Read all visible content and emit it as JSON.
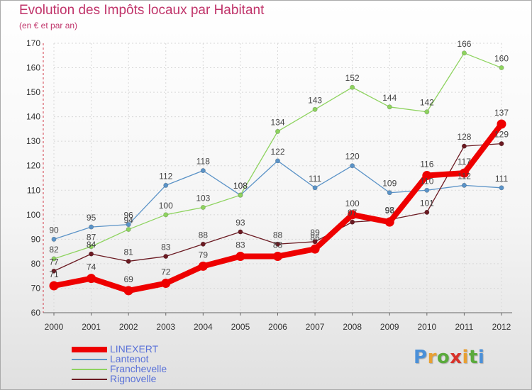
{
  "title": "Evolution des Impôts locaux par Habitant",
  "subtitle": "(en € et par an)",
  "logo": {
    "text": "Proxiti",
    "letter_colors": [
      "#4a90d9",
      "#e8a033",
      "#5aaa3c",
      "#d8322a",
      "#e8a033",
      "#5aaa3c",
      "#4a90d9"
    ]
  },
  "chart_data": {
    "type": "line",
    "title": "Evolution des Impôts locaux par Habitant",
    "subtitle": "(en € et par an)",
    "xlabel": "",
    "ylabel": "",
    "ylim": [
      60,
      170
    ],
    "yticks": [
      60,
      70,
      80,
      90,
      100,
      110,
      120,
      130,
      140,
      150,
      160,
      170
    ],
    "grid": true,
    "legend_position": "bottom-left",
    "x": [
      "2000",
      "2001",
      "2002",
      "2003",
      "2004",
      "2005",
      "2006",
      "2007",
      "2008",
      "2009",
      "2010",
      "2011",
      "2012"
    ],
    "series": [
      {
        "name": "LINEXERT",
        "color": "#ee0000",
        "values": [
          71,
          74,
          69,
          72,
          79,
          83,
          83,
          86,
          100,
          97,
          116,
          117,
          137
        ]
      },
      {
        "name": "Lantenot",
        "color": "#5b93c7",
        "values": [
          90,
          95,
          96,
          112,
          118,
          108,
          122,
          111,
          120,
          109,
          110,
          112,
          111
        ]
      },
      {
        "name": "Franchevelle",
        "color": "#8ed35f",
        "values": [
          82,
          87,
          94,
          100,
          103,
          108,
          134,
          143,
          152,
          144,
          142,
          166,
          160
        ]
      },
      {
        "name": "Rignovelle",
        "color": "#6b1a22",
        "values": [
          77,
          84,
          81,
          83,
          88,
          93,
          88,
          89,
          97,
          98,
          101,
          128,
          129
        ]
      }
    ]
  }
}
